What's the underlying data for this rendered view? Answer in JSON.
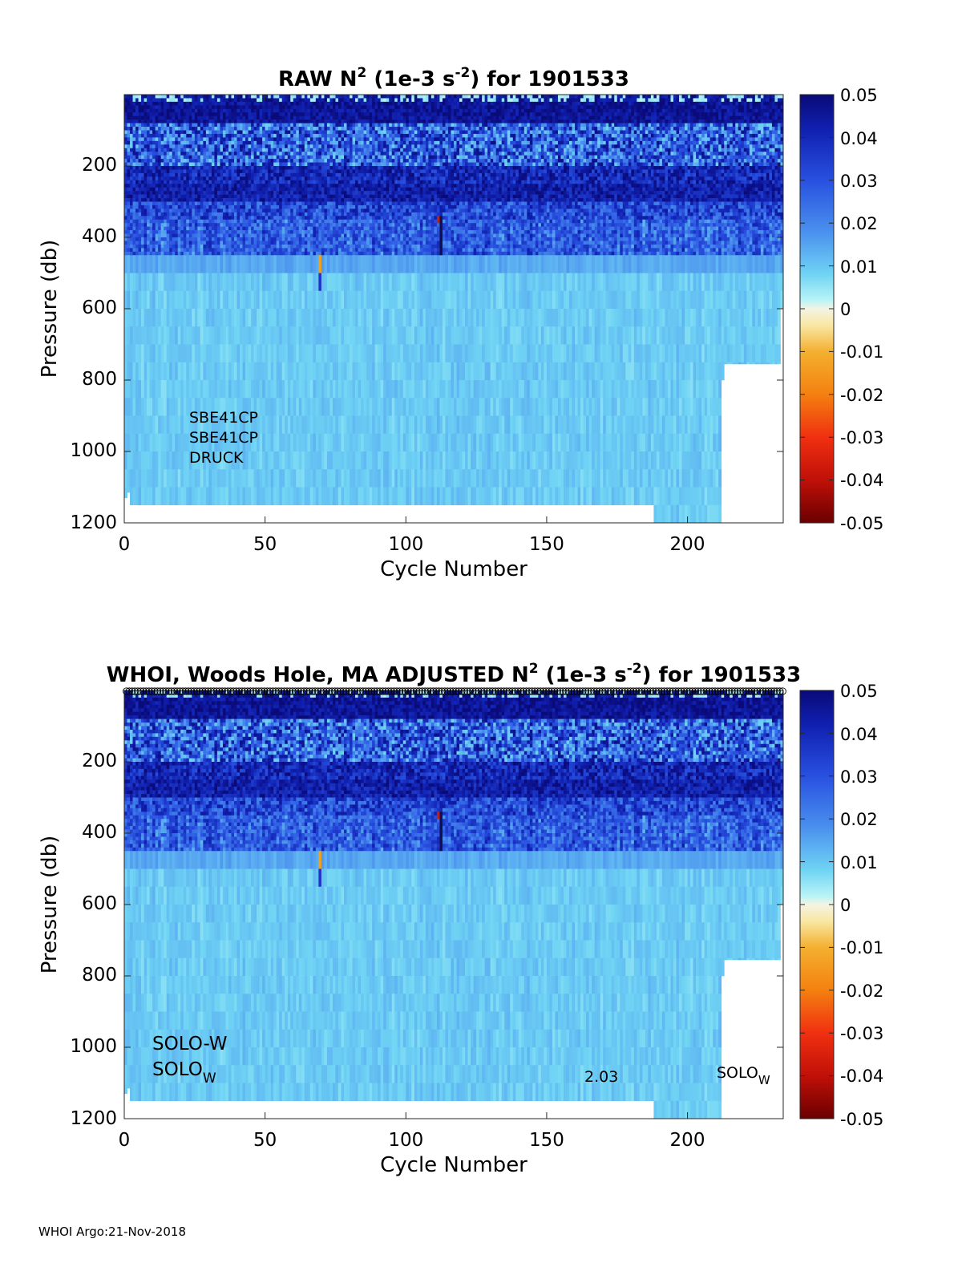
{
  "chart_data": [
    {
      "type": "heatmap",
      "title_prefix": "RAW N",
      "title_sup1": "2",
      "title_mid": " (1e-3 s",
      "title_sup2": "-2",
      "title_suffix": ") for 1901533",
      "xlabel": "Cycle Number",
      "ylabel": "Pressure (db)",
      "xlim": [
        0,
        234
      ],
      "ylim": [
        0,
        1200
      ],
      "y_reversed": true,
      "xticks": [
        "0",
        "50",
        "100",
        "150",
        "200"
      ],
      "yticks": [
        "200",
        "400",
        "600",
        "800",
        "1000",
        "1200"
      ],
      "colorbar_ticks": [
        "0.05",
        "0.04",
        "0.03",
        "0.02",
        "0.01",
        "0",
        "-0.01",
        "-0.02",
        "-0.03",
        "-0.04",
        "-0.05"
      ],
      "clim": [
        -0.05,
        0.05
      ],
      "annotations": [
        "SBE41CP",
        "SBE41CP",
        "DRUCK"
      ]
    },
    {
      "type": "heatmap",
      "title_prefix": "WHOI, Woods Hole, MA  ADJUSTED N",
      "title_sup1": "2",
      "title_mid": " (1e-3 s",
      "title_sup2": "-2",
      "title_suffix": ") for 1901533",
      "xlabel": "Cycle Number",
      "ylabel": "Pressure (db)",
      "xlim": [
        0,
        234
      ],
      "ylim": [
        0,
        1200
      ],
      "y_reversed": true,
      "xticks": [
        "0",
        "50",
        "100",
        "150",
        "200"
      ],
      "yticks": [
        "200",
        "400",
        "600",
        "800",
        "1000",
        "1200"
      ],
      "colorbar_ticks": [
        "0.05",
        "0.04",
        "0.03",
        "0.02",
        "0.01",
        "0",
        "-0.01",
        "-0.02",
        "-0.03",
        "-0.04",
        "-0.05"
      ],
      "clim": [
        -0.05,
        0.05
      ],
      "annotations": {
        "line1": "SOLO-W",
        "line2_base": "SOLO",
        "line2_sub": "W",
        "version": "2.03",
        "right_base": "SOLO",
        "right_sub": "W"
      }
    }
  ],
  "footer": "WHOI Argo:21-Nov-2018"
}
